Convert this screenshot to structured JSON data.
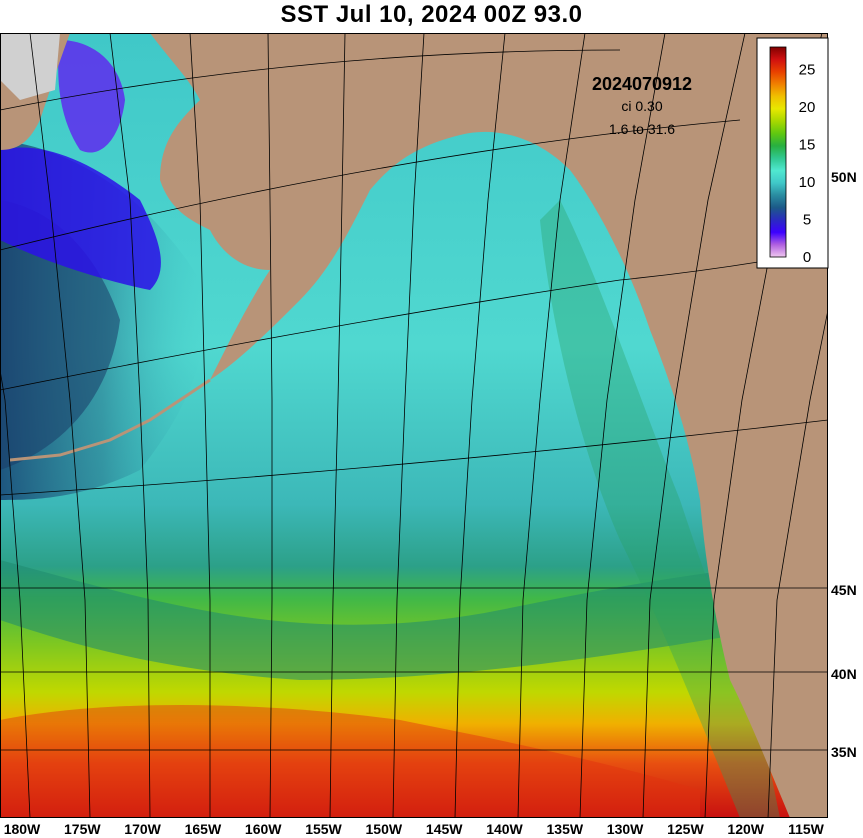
{
  "title": "SST Jul 10, 2024 00Z 93.0",
  "info": {
    "date_code": "2024070912",
    "contour_interval": "ci 0.30",
    "range": "1.6 to 31.6"
  },
  "colorbar": {
    "ticks": [
      "25",
      "20",
      "15",
      "10",
      "5",
      "0"
    ],
    "tick_values": [
      25,
      20,
      15,
      10,
      5,
      0
    ],
    "min": 0,
    "max": 28,
    "stops": [
      "#f0c8f0",
      "#b060e0",
      "#3c00ff",
      "#2a2ac0",
      "#1c5a88",
      "#2a8ca0",
      "#40c8c8",
      "#50e8d0",
      "#30c890",
      "#28b040",
      "#60c810",
      "#a8d800",
      "#e8e800",
      "#f0c000",
      "#f08000",
      "#e84000",
      "#d01010",
      "#800000"
    ]
  },
  "lon_labels": [
    "180W",
    "175W",
    "170W",
    "165W",
    "160W",
    "155W",
    "150W",
    "145W",
    "140W",
    "135W",
    "130W",
    "125W",
    "120W",
    "115W"
  ],
  "lat_labels": [
    "50N",
    "45N",
    "40N",
    "35N"
  ],
  "colors": {
    "land": "#b89478",
    "ice": "#d0d0d0",
    "grid": "#000000"
  }
}
